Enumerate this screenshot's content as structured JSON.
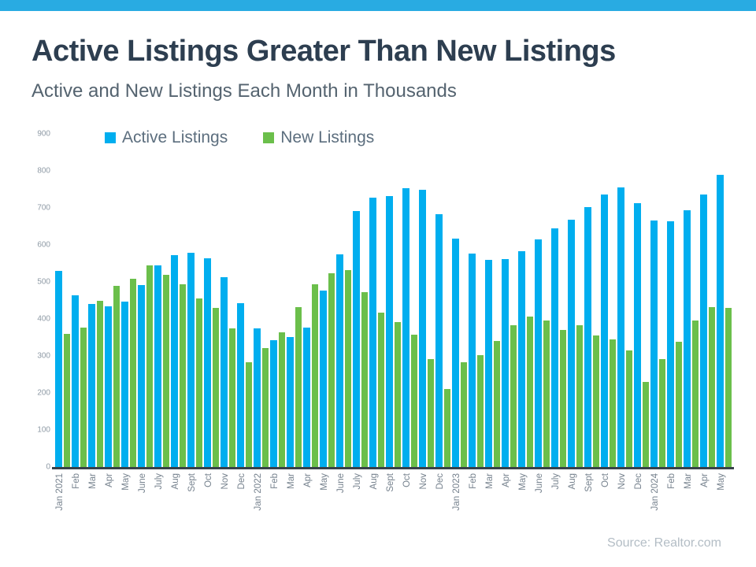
{
  "page": {
    "title": "Active Listings Greater Than New Listings",
    "subtitle": "Active and New Listings Each Month in Thousands",
    "source": "Source: Realtor.com"
  },
  "colors": {
    "top_bar": "#29ABE2",
    "active": "#00AEEF",
    "new": "#6BBF4B",
    "axis_line": "#37424A"
  },
  "chart_data": {
    "type": "bar",
    "title": "Active Listings Greater Than New Listings",
    "subtitle": "Active and New Listings Each Month in Thousands",
    "units": "thousands",
    "grid": false,
    "legend_position": "top",
    "ylim": [
      0,
      900
    ],
    "yticks": [
      0,
      100,
      200,
      300,
      400,
      500,
      600,
      700,
      800,
      900
    ],
    "categories": [
      "Jan 2021",
      "Feb",
      "Mar",
      "Apr",
      "May",
      "June",
      "July",
      "Aug",
      "Sept",
      "Oct",
      "Nov",
      "Dec",
      "Jan 2022",
      "Feb",
      "Mar",
      "Apr",
      "May",
      "June",
      "July",
      "Aug",
      "Sept",
      "Oct",
      "Nov",
      "Dec",
      "Jan 2023",
      "Feb",
      "Mar",
      "Apr",
      "May",
      "June",
      "July",
      "Aug",
      "Sept",
      "Oct",
      "Nov",
      "Dec",
      "Jan 2024",
      "Feb",
      "Mar",
      "Apr",
      "May"
    ],
    "series": [
      {
        "name": "Active Listings",
        "color": "#00AEEF",
        "values": [
          530,
          463,
          440,
          435,
          447,
          492,
          545,
          572,
          578,
          564,
          512,
          443,
          375,
          343,
          351,
          376,
          477,
          575,
          692,
          727,
          733,
          753,
          750,
          682,
          616,
          577,
          560,
          562,
          583,
          614,
          645,
          668,
          702,
          736,
          755,
          713,
          665,
          663,
          693,
          736,
          789
        ]
      },
      {
        "name": "New Listings",
        "color": "#6BBF4B",
        "values": [
          360,
          377,
          450,
          490,
          509,
          545,
          519,
          493,
          456,
          429,
          374,
          284,
          322,
          364,
          433,
          494,
          523,
          532,
          472,
          416,
          392,
          358,
          292,
          210,
          284,
          303,
          340,
          383,
          406,
          396,
          370,
          384,
          356,
          345,
          315,
          230,
          292,
          338,
          395,
          433,
          429
        ]
      }
    ]
  }
}
